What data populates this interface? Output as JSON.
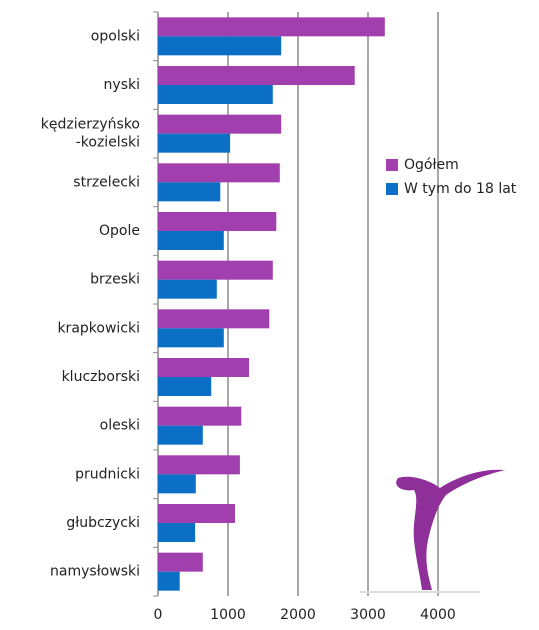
{
  "chart_data": {
    "type": "bar",
    "orientation": "horizontal",
    "categories": [
      "opolski",
      "nyski",
      "kędzierzyńsko\n-kozielski",
      "strzelecki",
      "Opole",
      "brzeski",
      "krapkowicki",
      "kluczborski",
      "oleski",
      "prudnicki",
      "głubczycki",
      "namysłowski"
    ],
    "series": [
      {
        "name": "Ogółem",
        "color": "#a23fae",
        "values": [
          3240,
          2810,
          1760,
          1740,
          1690,
          1640,
          1590,
          1300,
          1190,
          1170,
          1100,
          640
        ]
      },
      {
        "name": "W tym do 18 lat",
        "color": "#0b6fc6",
        "values": [
          1760,
          1640,
          1030,
          890,
          940,
          840,
          940,
          760,
          640,
          540,
          530,
          310
        ]
      }
    ],
    "xlim": [
      0,
      4000
    ],
    "xticks": [
      0,
      1000,
      2000,
      3000,
      4000
    ],
    "grid": true,
    "legend": "right"
  }
}
